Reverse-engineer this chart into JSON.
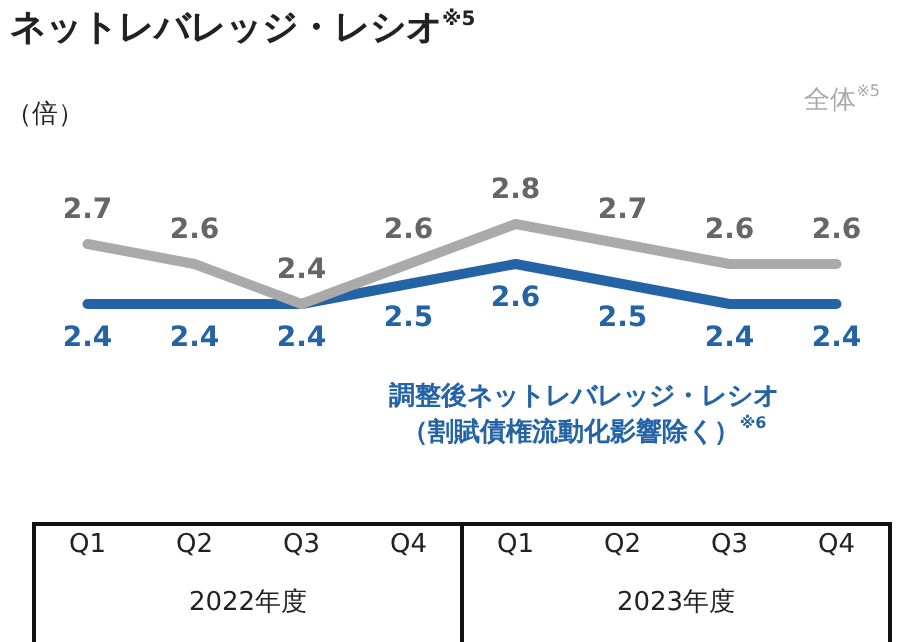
{
  "chart_data": {
    "type": "line",
    "title": "ネットレバレッジ・レシオ$^{※5}$",
    "ylabel": "（倍）",
    "categories": [
      "Q1",
      "Q2",
      "Q3",
      "Q4",
      "Q1",
      "Q2",
      "Q3",
      "Q4"
    ],
    "series": [
      {
        "name": "全体$^{※5}$",
        "color": "#aaaaaa",
        "values": [
          2.7,
          2.6,
          2.4,
          2.6,
          2.8,
          2.7,
          2.6,
          2.6
        ]
      },
      {
        "name": "調整後ネットレバレッジ・レシオ（割賦債権流動化影響除く）$^{※6}$",
        "color": "#2463a5",
        "values": [
          2.4,
          2.4,
          2.4,
          2.5,
          2.6,
          2.5,
          2.4,
          2.4
        ]
      }
    ],
    "annotations": [
      "2022年度",
      "2023年度"
    ],
    "data_labels": true,
    "marker": "none",
    "line_style": "solid",
    "legend": false,
    "grid": false,
    "relative": false
  }
}
